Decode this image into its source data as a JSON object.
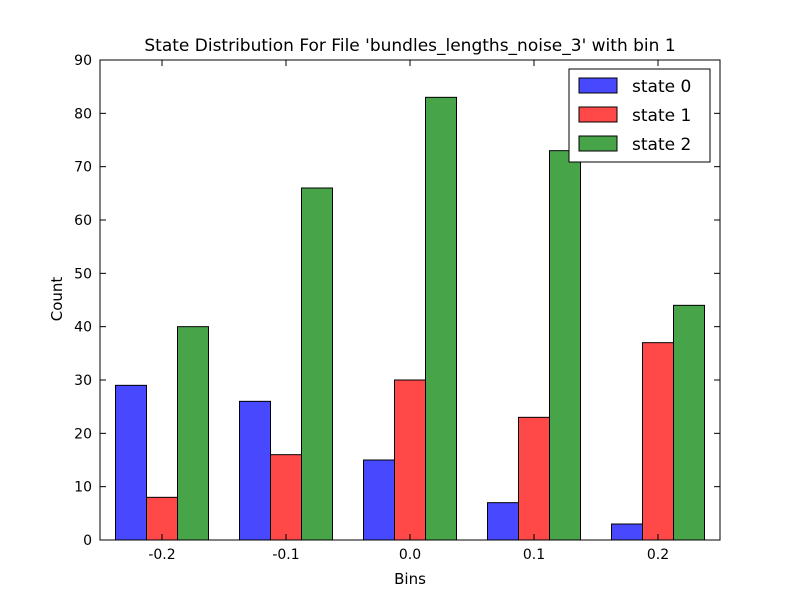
{
  "chart_data": {
    "type": "bar",
    "title": "State Distribution For File 'bundles_lengths_noise_3' with bin 1",
    "xlabel": "Bins",
    "ylabel": "Count",
    "ylim": [
      0,
      90
    ],
    "grid": false,
    "legend_position": "top-right",
    "categories": [
      "-0.2",
      "-0.1",
      "0.0",
      "0.1",
      "0.2"
    ],
    "y_ticks": [
      "0",
      "10",
      "20",
      "30",
      "40",
      "50",
      "60",
      "70",
      "80",
      "90"
    ],
    "series": [
      {
        "name": "state 0",
        "color": "#4848ff",
        "values": [
          29,
          26,
          15,
          7,
          3
        ]
      },
      {
        "name": "state 1",
        "color": "#ff4848",
        "values": [
          8,
          16,
          30,
          23,
          37
        ]
      },
      {
        "name": "state 2",
        "color": "#48a448",
        "values": [
          40,
          66,
          83,
          73,
          44
        ]
      }
    ]
  }
}
